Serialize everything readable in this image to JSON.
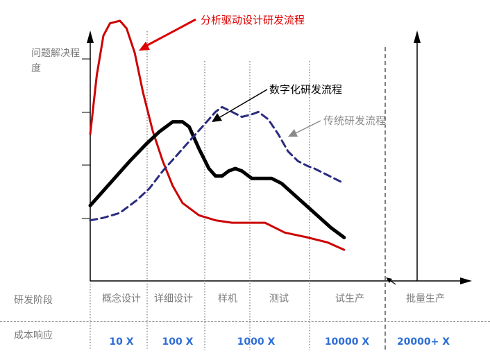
{
  "chart_data": {
    "type": "line",
    "ylabel": "问题解决程度",
    "annotations": [
      {
        "series": "analysis",
        "text": "分析驱动设计研发流程",
        "color": "#dd0000"
      },
      {
        "series": "digital",
        "text": "数字化研发流程",
        "color": "#000000"
      },
      {
        "series": "traditional",
        "text": "传统研发流程",
        "color": "#8a8a8a"
      }
    ],
    "series": [
      {
        "id": "analysis",
        "color": "#cc0000",
        "style": "solid",
        "points": [
          [
            0.0,
            0.54
          ],
          [
            0.02,
            0.78
          ],
          [
            0.04,
            0.94
          ],
          [
            0.06,
            0.99
          ],
          [
            0.09,
            1.0
          ],
          [
            0.11,
            0.97
          ],
          [
            0.135,
            0.87
          ],
          [
            0.16,
            0.71
          ],
          [
            0.19,
            0.55
          ],
          [
            0.22,
            0.43
          ],
          [
            0.25,
            0.33
          ],
          [
            0.28,
            0.26
          ],
          [
            0.33,
            0.21
          ],
          [
            0.38,
            0.19
          ],
          [
            0.43,
            0.18
          ],
          [
            0.48,
            0.18
          ],
          [
            0.53,
            0.18
          ],
          [
            0.56,
            0.16
          ],
          [
            0.59,
            0.14
          ],
          [
            0.66,
            0.12
          ],
          [
            0.72,
            0.1
          ],
          [
            0.77,
            0.07
          ]
        ]
      },
      {
        "id": "digital",
        "color": "#000000",
        "style": "solid",
        "points": [
          [
            0.0,
            0.25
          ],
          [
            0.06,
            0.34
          ],
          [
            0.12,
            0.43
          ],
          [
            0.17,
            0.5
          ],
          [
            0.21,
            0.55
          ],
          [
            0.25,
            0.59
          ],
          [
            0.28,
            0.59
          ],
          [
            0.3,
            0.57
          ],
          [
            0.33,
            0.48
          ],
          [
            0.36,
            0.4
          ],
          [
            0.38,
            0.37
          ],
          [
            0.4,
            0.37
          ],
          [
            0.42,
            0.39
          ],
          [
            0.44,
            0.4
          ],
          [
            0.46,
            0.39
          ],
          [
            0.49,
            0.36
          ],
          [
            0.52,
            0.36
          ],
          [
            0.55,
            0.36
          ],
          [
            0.58,
            0.34
          ],
          [
            0.63,
            0.28
          ],
          [
            0.68,
            0.22
          ],
          [
            0.73,
            0.16
          ],
          [
            0.77,
            0.12
          ]
        ]
      },
      {
        "id": "traditional",
        "color": "#2b2b80",
        "style": "dashed",
        "points": [
          [
            0.0,
            0.19
          ],
          [
            0.04,
            0.2
          ],
          [
            0.09,
            0.22
          ],
          [
            0.14,
            0.27
          ],
          [
            0.18,
            0.32
          ],
          [
            0.22,
            0.39
          ],
          [
            0.26,
            0.45
          ],
          [
            0.3,
            0.51
          ],
          [
            0.34,
            0.57
          ],
          [
            0.38,
            0.63
          ],
          [
            0.4,
            0.65
          ],
          [
            0.43,
            0.63
          ],
          [
            0.46,
            0.61
          ],
          [
            0.49,
            0.62
          ],
          [
            0.51,
            0.63
          ],
          [
            0.54,
            0.6
          ],
          [
            0.57,
            0.54
          ],
          [
            0.6,
            0.47
          ],
          [
            0.63,
            0.43
          ],
          [
            0.66,
            0.41
          ],
          [
            0.68,
            0.4
          ],
          [
            0.71,
            0.38
          ],
          [
            0.74,
            0.36
          ],
          [
            0.77,
            0.34
          ]
        ]
      }
    ]
  },
  "rows": {
    "stage_heading": "研发阶段",
    "cost_heading": "成本响应"
  },
  "stages": [
    "概念设计",
    "详细设计",
    "样机",
    "测试",
    "试生产",
    "批量生产"
  ],
  "costs": [
    "10 X",
    "100 X",
    "1000 X",
    "10000 X",
    "20000+ X"
  ]
}
